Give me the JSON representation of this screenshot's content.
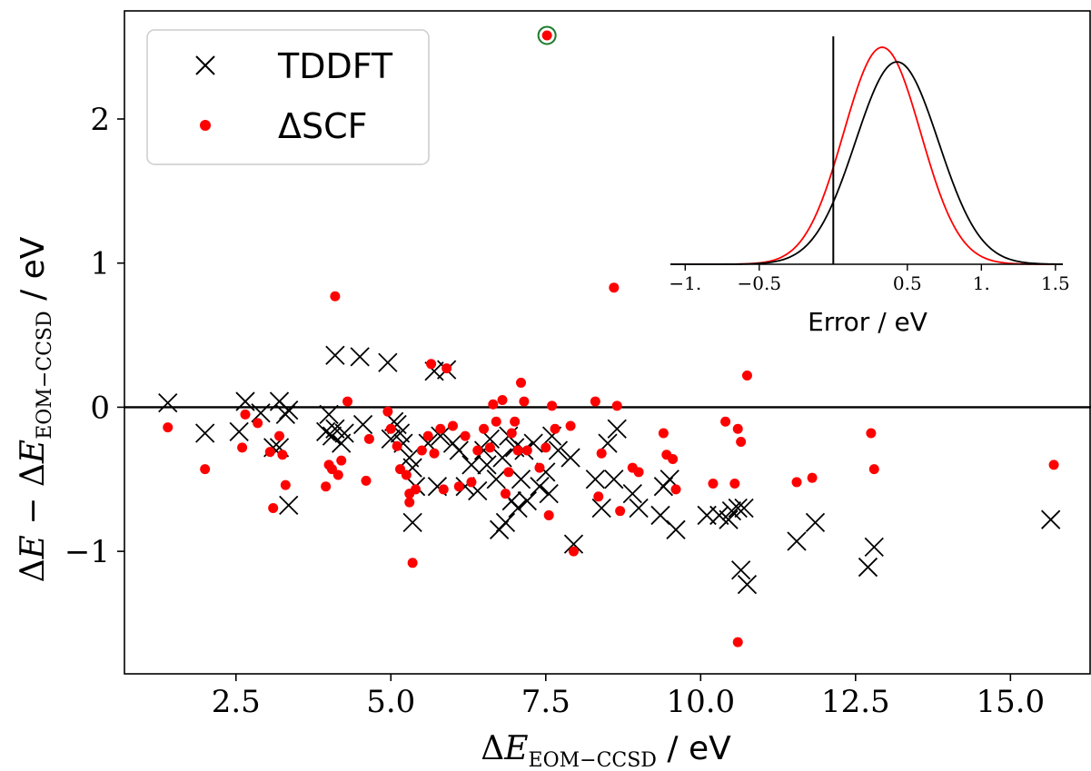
{
  "chart_data": [
    {
      "type": "scatter",
      "title": "",
      "xlabel": "ΔE_EOM−CCSD / eV",
      "ylabel": "ΔE − ΔE_EOM−CCSD / eV",
      "xlabel_parts": {
        "delta": "Δ",
        "var": "E",
        "sub": "EOM−CCSD",
        "unit": " / eV"
      },
      "ylabel_parts": {
        "delta": "Δ",
        "var": "E",
        "minus": " − ",
        "delta2": "Δ",
        "var2": "E",
        "sub": "EOM−CCSD",
        "unit": " / eV"
      },
      "xlim": [
        0.7,
        16.3
      ],
      "ylim": [
        -1.85,
        2.75
      ],
      "xticks": [
        2.5,
        5.0,
        7.5,
        10.0,
        12.5,
        15.0
      ],
      "xtick_labels": [
        "2.5",
        "5.0",
        "7.5",
        "10.0",
        "12.5",
        "15.0"
      ],
      "yticks": [
        -1,
        0,
        1,
        2
      ],
      "ytick_labels": [
        "−1",
        "0",
        "1",
        "2"
      ],
      "grid": false,
      "legend": "top-left",
      "reference_line_y": 0,
      "series": [
        {
          "name": "TDDFT",
          "marker": "x",
          "color": "#000000",
          "points": [
            [
              1.4,
              0.03
            ],
            [
              2.0,
              -0.18
            ],
            [
              2.55,
              -0.17
            ],
            [
              2.65,
              0.04
            ],
            [
              2.9,
              -0.04
            ],
            [
              3.1,
              -0.28
            ],
            [
              3.2,
              0.04
            ],
            [
              3.2,
              -0.28
            ],
            [
              3.3,
              -0.05
            ],
            [
              3.35,
              -0.68
            ],
            [
              3.35,
              -0.02
            ],
            [
              3.95,
              -0.17
            ],
            [
              4.0,
              -0.05
            ],
            [
              4.05,
              -0.2
            ],
            [
              4.1,
              0.36
            ],
            [
              4.1,
              -0.15
            ],
            [
              4.2,
              -0.25
            ],
            [
              4.25,
              -0.18
            ],
            [
              4.5,
              0.35
            ],
            [
              4.55,
              -0.12
            ],
            [
              4.95,
              0.31
            ],
            [
              5.0,
              -0.22
            ],
            [
              5.05,
              -0.1
            ],
            [
              5.1,
              -0.12
            ],
            [
              5.15,
              -0.18
            ],
            [
              5.2,
              -0.25
            ],
            [
              5.3,
              -0.35
            ],
            [
              5.35,
              -0.42
            ],
            [
              5.35,
              -0.8
            ],
            [
              5.4,
              -0.55
            ],
            [
              5.6,
              -0.25
            ],
            [
              5.7,
              0.25
            ],
            [
              5.75,
              -0.55
            ],
            [
              5.8,
              -0.2
            ],
            [
              5.9,
              0.26
            ],
            [
              6.0,
              -0.25
            ],
            [
              6.1,
              -0.3
            ],
            [
              6.2,
              -0.55
            ],
            [
              6.3,
              -0.4
            ],
            [
              6.4,
              -0.58
            ],
            [
              6.5,
              -0.3
            ],
            [
              6.55,
              -0.4
            ],
            [
              6.6,
              -0.22
            ],
            [
              6.7,
              -0.5
            ],
            [
              6.75,
              -0.85
            ],
            [
              6.8,
              -0.35
            ],
            [
              6.85,
              -0.8
            ],
            [
              6.9,
              -0.2
            ],
            [
              6.95,
              -0.65
            ],
            [
              7.0,
              -0.28
            ],
            [
              7.05,
              -0.7
            ],
            [
              7.1,
              -0.5
            ],
            [
              7.15,
              -0.3
            ],
            [
              7.2,
              -0.65
            ],
            [
              7.3,
              -0.25
            ],
            [
              7.4,
              -0.55
            ],
            [
              7.5,
              -0.45
            ],
            [
              7.55,
              -0.6
            ],
            [
              7.6,
              -0.2
            ],
            [
              7.7,
              -0.3
            ],
            [
              7.9,
              -0.35
            ],
            [
              7.95,
              -0.95
            ],
            [
              8.3,
              -0.5
            ],
            [
              8.4,
              -0.7
            ],
            [
              8.5,
              -0.25
            ],
            [
              8.6,
              -0.5
            ],
            [
              8.65,
              -0.15
            ],
            [
              8.9,
              -0.6
            ],
            [
              9.0,
              -0.7
            ],
            [
              9.35,
              -0.75
            ],
            [
              9.4,
              -0.55
            ],
            [
              9.5,
              -0.5
            ],
            [
              9.6,
              -0.85
            ],
            [
              10.1,
              -0.75
            ],
            [
              10.3,
              -0.75
            ],
            [
              10.45,
              -0.78
            ],
            [
              10.5,
              -0.72
            ],
            [
              10.6,
              -0.7
            ],
            [
              10.65,
              -1.13
            ],
            [
              10.7,
              -0.7
            ],
            [
              10.75,
              -1.23
            ],
            [
              11.55,
              -0.93
            ],
            [
              11.85,
              -0.8
            ],
            [
              12.7,
              -1.11
            ],
            [
              12.8,
              -0.97
            ],
            [
              15.65,
              -0.78
            ]
          ]
        },
        {
          "name": "ΔSCF",
          "marker": "o",
          "color": "#ff0000",
          "points": [
            [
              1.4,
              -0.14
            ],
            [
              2.0,
              -0.43
            ],
            [
              2.6,
              -0.28
            ],
            [
              2.65,
              -0.05
            ],
            [
              2.85,
              -0.11
            ],
            [
              3.05,
              -0.31
            ],
            [
              3.1,
              -0.7
            ],
            [
              3.2,
              -0.2
            ],
            [
              3.25,
              -0.33
            ],
            [
              3.3,
              -0.54
            ],
            [
              3.95,
              -0.55
            ],
            [
              4.0,
              -0.4
            ],
            [
              4.05,
              -0.43
            ],
            [
              4.1,
              0.77
            ],
            [
              4.15,
              -0.47
            ],
            [
              4.2,
              -0.37
            ],
            [
              4.3,
              0.04
            ],
            [
              4.6,
              -0.51
            ],
            [
              4.65,
              -0.22
            ],
            [
              4.95,
              -0.03
            ],
            [
              5.0,
              -0.15
            ],
            [
              5.1,
              -0.27
            ],
            [
              5.15,
              -0.43
            ],
            [
              5.25,
              -0.47
            ],
            [
              5.3,
              -0.6
            ],
            [
              5.3,
              -0.66
            ],
            [
              5.35,
              -1.08
            ],
            [
              5.4,
              -0.57
            ],
            [
              5.5,
              -0.3
            ],
            [
              5.6,
              -0.2
            ],
            [
              5.65,
              0.3
            ],
            [
              5.7,
              -0.32
            ],
            [
              5.8,
              -0.15
            ],
            [
              5.85,
              -0.57
            ],
            [
              5.9,
              0.27
            ],
            [
              6.0,
              -0.13
            ],
            [
              6.1,
              -0.55
            ],
            [
              6.2,
              -0.2
            ],
            [
              6.3,
              -0.52
            ],
            [
              6.4,
              -0.3
            ],
            [
              6.5,
              -0.15
            ],
            [
              6.6,
              -0.28
            ],
            [
              6.65,
              0.02
            ],
            [
              6.7,
              -0.1
            ],
            [
              6.8,
              0.05
            ],
            [
              6.85,
              -0.6
            ],
            [
              6.9,
              -0.45
            ],
            [
              6.95,
              -0.18
            ],
            [
              7.0,
              -0.1
            ],
            [
              7.05,
              -0.3
            ],
            [
              7.1,
              0.17
            ],
            [
              7.15,
              0.04
            ],
            [
              7.2,
              -0.3
            ],
            [
              7.4,
              -0.42
            ],
            [
              7.5,
              -0.28
            ],
            [
              7.55,
              -0.75
            ],
            [
              7.6,
              0.01
            ],
            [
              7.65,
              -0.15
            ],
            [
              7.9,
              -0.13
            ],
            [
              7.95,
              -1.0
            ],
            [
              8.3,
              0.04
            ],
            [
              8.35,
              -0.62
            ],
            [
              8.4,
              -0.32
            ],
            [
              8.6,
              0.83
            ],
            [
              8.65,
              0.01
            ],
            [
              8.7,
              -0.72
            ],
            [
              8.9,
              -0.42
            ],
            [
              9.0,
              -0.45
            ],
            [
              9.4,
              -0.18
            ],
            [
              9.45,
              -0.33
            ],
            [
              9.55,
              -0.36
            ],
            [
              9.6,
              -0.57
            ],
            [
              10.2,
              -0.53
            ],
            [
              10.4,
              -0.1
            ],
            [
              10.55,
              -0.53
            ],
            [
              10.6,
              -0.15
            ],
            [
              10.6,
              -1.63
            ],
            [
              10.65,
              -0.24
            ],
            [
              10.75,
              0.22
            ],
            [
              11.55,
              -0.52
            ],
            [
              11.8,
              -0.49
            ],
            [
              12.75,
              -0.18
            ],
            [
              12.8,
              -0.43
            ],
            [
              15.7,
              -0.4
            ],
            [
              7.52,
              2.58
            ]
          ]
        }
      ],
      "highlighted_point": {
        "x": 7.52,
        "y": 2.58,
        "ring_color": "#1a7a2a"
      }
    },
    {
      "type": "line",
      "title": "",
      "xlabel": "Error / eV",
      "ylabel": "",
      "xlim": [
        -1.1,
        1.55
      ],
      "ylim": [
        0,
        2.5
      ],
      "xticks": [
        -1,
        -0.5,
        0.5,
        1,
        1.5
      ],
      "xtick_labels": [
        "−1.",
        "−0.5",
        "0.5",
        "1.",
        "1.5"
      ],
      "vertical_line_x": 0,
      "series": [
        {
          "name": "",
          "color": "#ff0000",
          "kind": "gaussian",
          "mean": 0.33,
          "std": 0.26,
          "peak": 2.38
        },
        {
          "name": "",
          "color": "#000000",
          "kind": "gaussian",
          "mean": 0.43,
          "std": 0.28,
          "peak": 2.22
        }
      ]
    }
  ],
  "legend": {
    "items": [
      {
        "label": "TDDFT",
        "marker": "x",
        "color": "#000000"
      },
      {
        "label": "ΔSCF",
        "marker": "o",
        "color": "#ff0000"
      }
    ]
  }
}
